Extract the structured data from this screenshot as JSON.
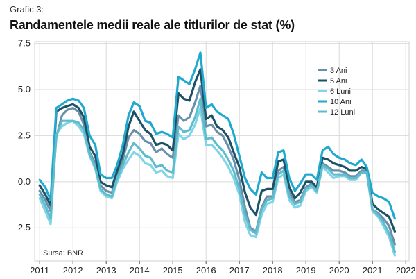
{
  "chart_data": {
    "type": "line",
    "supertitle": "Grafic 3:",
    "title": "Randamentele medii reale ale titlurilor de stat (%)",
    "source": "Sursa: BNR",
    "xlabel": "",
    "ylabel": "",
    "xlim": [
      2010.85,
      2022.1
    ],
    "ylim": [
      -4.3,
      7.6
    ],
    "xticks": [
      2011,
      2012,
      2013,
      2014,
      2015,
      2016,
      2017,
      2018,
      2019,
      2020,
      2021,
      2022
    ],
    "xtick_labels": [
      "2011",
      "2012",
      "2013",
      "2014",
      "2015",
      "2016",
      "2017",
      "2018",
      "2019",
      "2020",
      "2021",
      "2022"
    ],
    "yticks": [
      7.5,
      5.0,
      2.5,
      0.0,
      -2.5
    ],
    "ytick_labels": [
      "7.5",
      "5.0",
      "2.5",
      "0.0",
      "-2.5"
    ],
    "grid": true,
    "legend_position": "top-right",
    "x": [
      2011.0,
      2011.17,
      2011.33,
      2011.5,
      2011.67,
      2011.83,
      2012.0,
      2012.17,
      2012.33,
      2012.5,
      2012.67,
      2012.83,
      2013.0,
      2013.17,
      2013.33,
      2013.5,
      2013.67,
      2013.83,
      2014.0,
      2014.17,
      2014.33,
      2014.5,
      2014.67,
      2014.83,
      2015.0,
      2015.17,
      2015.33,
      2015.5,
      2015.67,
      2015.83,
      2016.0,
      2016.17,
      2016.33,
      2016.5,
      2016.67,
      2016.83,
      2017.0,
      2017.17,
      2017.33,
      2017.5,
      2017.67,
      2017.83,
      2018.0,
      2018.17,
      2018.33,
      2018.5,
      2018.67,
      2018.83,
      2019.0,
      2019.17,
      2019.33,
      2019.5,
      2019.67,
      2019.83,
      2020.0,
      2020.17,
      2020.33,
      2020.5,
      2020.67,
      2020.83,
      2021.0,
      2021.17,
      2021.33,
      2021.5,
      2021.67
    ],
    "series": [
      {
        "name": "3 Ani",
        "color": "#6a8fa8",
        "values": [
          -0.5,
          -1.0,
          -1.6,
          2.4,
          3.6,
          3.9,
          4.0,
          3.8,
          3.1,
          1.6,
          1.0,
          -0.2,
          -0.5,
          -0.6,
          0.4,
          1.2,
          2.4,
          2.8,
          2.6,
          2.2,
          2.1,
          1.6,
          1.8,
          1.5,
          1.3,
          3.6,
          3.3,
          3.5,
          4.3,
          5.2,
          3.0,
          3.1,
          2.7,
          2.5,
          1.9,
          1.2,
          0.1,
          -1.4,
          -2.5,
          -2.7,
          -1.4,
          -0.8,
          -0.8,
          0.6,
          0.8,
          -0.6,
          -1.1,
          -1.0,
          -0.3,
          -0.1,
          -0.5,
          1.0,
          0.8,
          0.6,
          0.6,
          0.5,
          0.3,
          0.3,
          0.6,
          0.6,
          -1.5,
          -1.7,
          -2.0,
          -2.4,
          -3.4
        ]
      },
      {
        "name": "5 Ani",
        "color": "#1d5266",
        "values": [
          -0.2,
          -0.7,
          -1.3,
          3.8,
          4.0,
          4.1,
          4.2,
          4.0,
          3.5,
          1.9,
          1.4,
          0.0,
          -0.2,
          -0.3,
          0.6,
          1.5,
          3.0,
          3.8,
          3.3,
          2.8,
          2.6,
          2.0,
          2.1,
          2.0,
          1.7,
          4.8,
          4.5,
          4.4,
          5.4,
          6.1,
          3.4,
          3.6,
          3.0,
          2.8,
          2.4,
          1.6,
          0.8,
          -0.6,
          -1.4,
          -1.8,
          -0.5,
          -0.4,
          -0.4,
          1.1,
          1.2,
          -0.3,
          -0.9,
          -0.6,
          0.0,
          0.0,
          -0.3,
          1.3,
          1.2,
          1.0,
          0.9,
          0.8,
          0.6,
          0.6,
          0.8,
          0.7,
          -1.2,
          -1.5,
          -1.7,
          -1.9,
          -2.7
        ]
      },
      {
        "name": "6 Luni",
        "color": "#7fd4e6",
        "values": [
          -0.9,
          -1.6,
          -2.3,
          2.6,
          3.0,
          3.2,
          3.3,
          3.0,
          2.6,
          1.4,
          0.7,
          -0.5,
          -0.8,
          -0.9,
          0.0,
          0.7,
          1.2,
          1.6,
          1.4,
          1.0,
          0.9,
          0.5,
          0.6,
          0.3,
          0.2,
          2.6,
          2.3,
          2.5,
          3.1,
          4.0,
          2.0,
          2.0,
          1.7,
          1.3,
          0.8,
          0.2,
          -0.7,
          -2.2,
          -2.9,
          -3.0,
          -1.8,
          -1.2,
          -1.1,
          0.2,
          0.4,
          -1.0,
          -1.4,
          -1.3,
          -0.5,
          -0.3,
          -0.6,
          0.8,
          0.5,
          0.2,
          0.3,
          0.3,
          0.1,
          0.1,
          0.5,
          0.5,
          -1.6,
          -1.9,
          -2.4,
          -3.0,
          -4.0
        ]
      },
      {
        "name": "10 Ani",
        "color": "#1fa9cf",
        "values": [
          0.1,
          -0.3,
          -1.0,
          4.0,
          4.2,
          4.4,
          4.5,
          4.4,
          4.0,
          2.5,
          2.0,
          0.4,
          0.2,
          0.2,
          0.9,
          2.0,
          3.6,
          4.3,
          4.1,
          3.3,
          3.2,
          2.6,
          2.7,
          2.6,
          2.4,
          5.7,
          5.5,
          5.3,
          6.1,
          7.0,
          4.0,
          4.2,
          3.8,
          3.6,
          3.4,
          2.6,
          1.4,
          0.2,
          -0.4,
          -0.7,
          0.5,
          0.2,
          0.2,
          1.6,
          1.7,
          0.2,
          -0.5,
          -0.1,
          0.4,
          0.4,
          0.1,
          1.7,
          1.9,
          1.5,
          1.3,
          1.2,
          1.0,
          0.9,
          1.2,
          0.8,
          -0.6,
          -0.8,
          -0.9,
          -1.1,
          -2.0
        ]
      },
      {
        "name": "12 Luni",
        "color": "#5fbccc",
        "values": [
          -0.7,
          -1.3,
          -2.0,
          2.5,
          3.3,
          3.3,
          3.3,
          3.2,
          2.8,
          1.5,
          0.8,
          -0.4,
          -0.7,
          -0.8,
          0.2,
          0.9,
          1.6,
          2.1,
          1.8,
          1.4,
          1.3,
          0.8,
          0.9,
          0.6,
          0.5,
          3.0,
          2.7,
          2.8,
          3.5,
          4.5,
          2.3,
          2.4,
          2.0,
          1.7,
          1.2,
          0.6,
          -0.4,
          -1.8,
          -2.6,
          -2.8,
          -1.5,
          -1.0,
          -0.9,
          0.4,
          0.6,
          -0.8,
          -1.2,
          -1.1,
          -0.4,
          -0.2,
          -0.5,
          0.9,
          0.7,
          0.4,
          0.4,
          0.4,
          0.2,
          0.2,
          0.5,
          0.5,
          -1.5,
          -1.8,
          -2.2,
          -2.8,
          -3.8
        ]
      }
    ]
  }
}
